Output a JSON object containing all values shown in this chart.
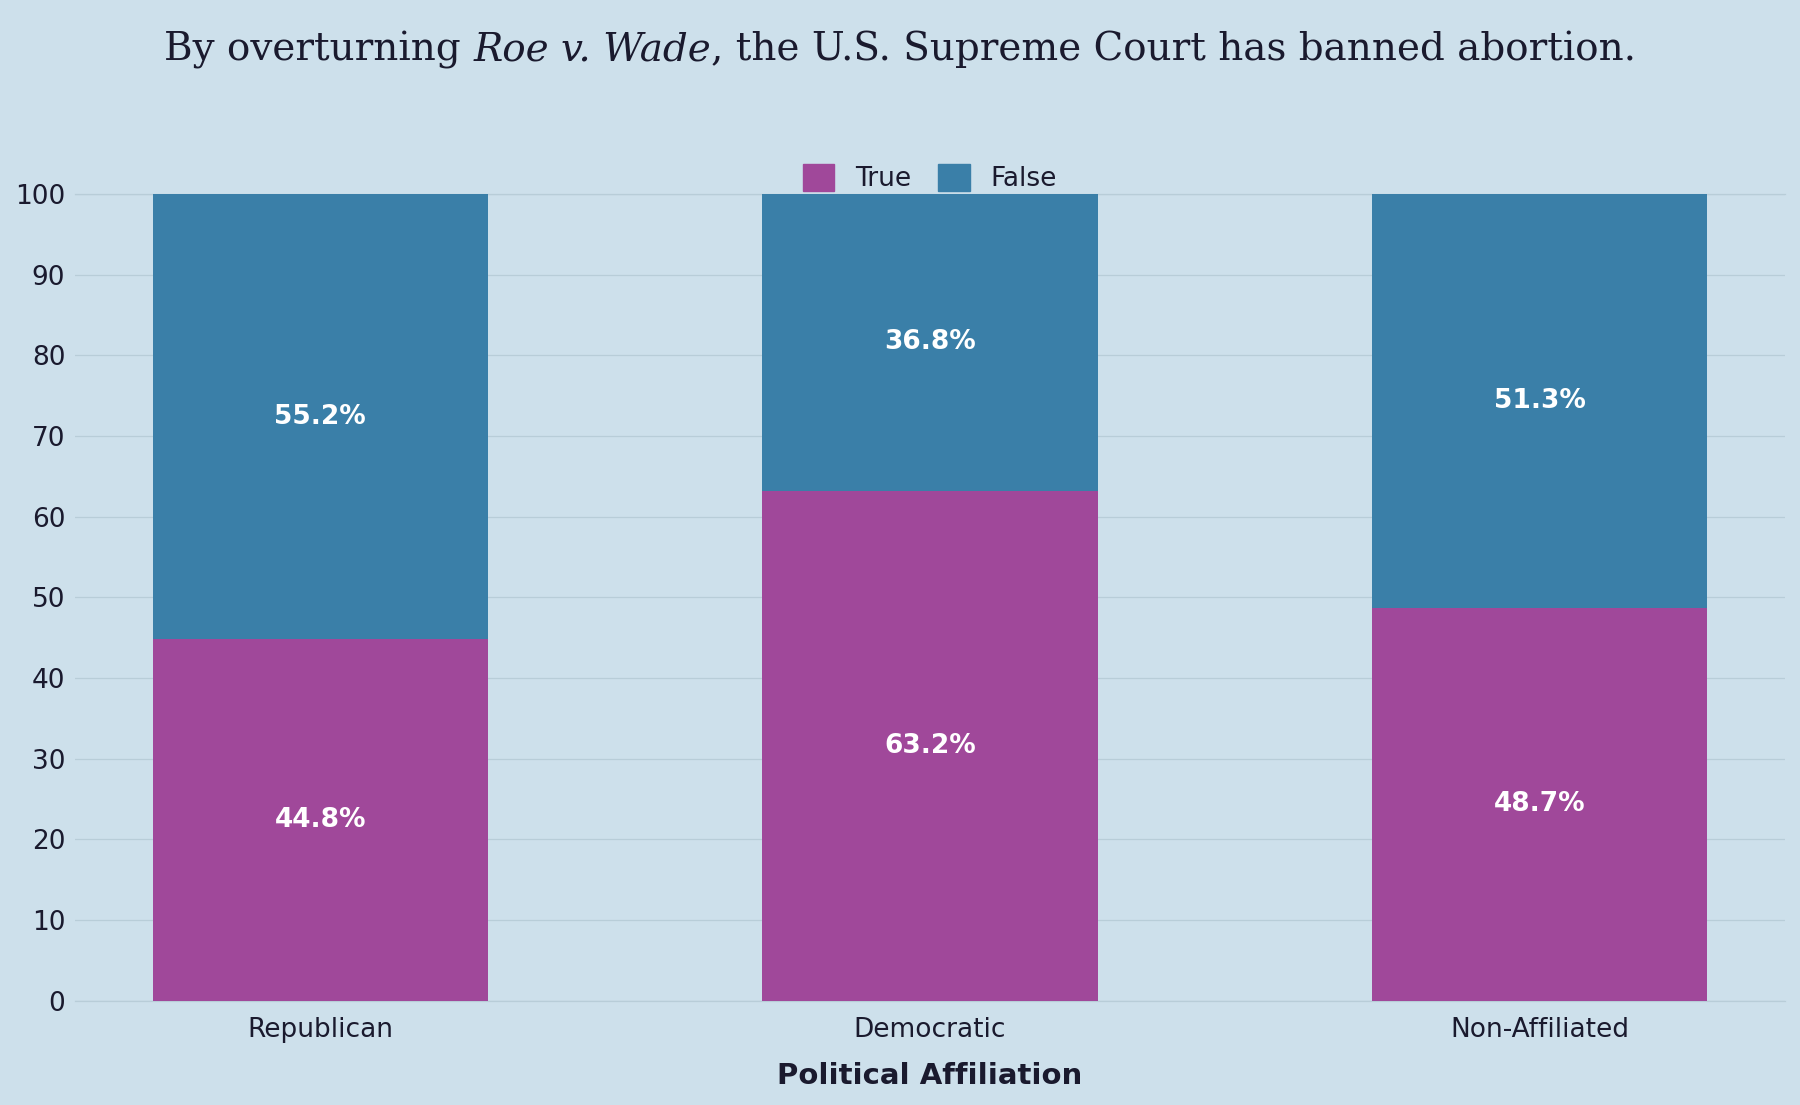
{
  "title_part1": "By overturning ",
  "title_italic": "Roe v. Wade",
  "title_part2": ", the U.S. Supreme Court has banned abortion.",
  "categories": [
    "Republican",
    "Democratic",
    "Non-Affiliated"
  ],
  "true_values": [
    44.8,
    63.2,
    48.7
  ],
  "false_values": [
    55.2,
    36.8,
    51.3
  ],
  "true_color": "#a0489a",
  "false_color": "#3a7fa8",
  "background_color": "#cde0eb",
  "xlabel": "Political Affiliation",
  "ylim": [
    0,
    100
  ],
  "yticks": [
    0,
    10,
    20,
    30,
    40,
    50,
    60,
    70,
    80,
    90,
    100
  ],
  "label_fontsize": 19,
  "tick_fontsize": 19,
  "title_fontsize": 28,
  "annotation_fontsize": 19,
  "xlabel_fontsize": 21,
  "bar_width": 0.55,
  "grid_color": "#b8cdd8",
  "text_color": "#1a1a2e"
}
